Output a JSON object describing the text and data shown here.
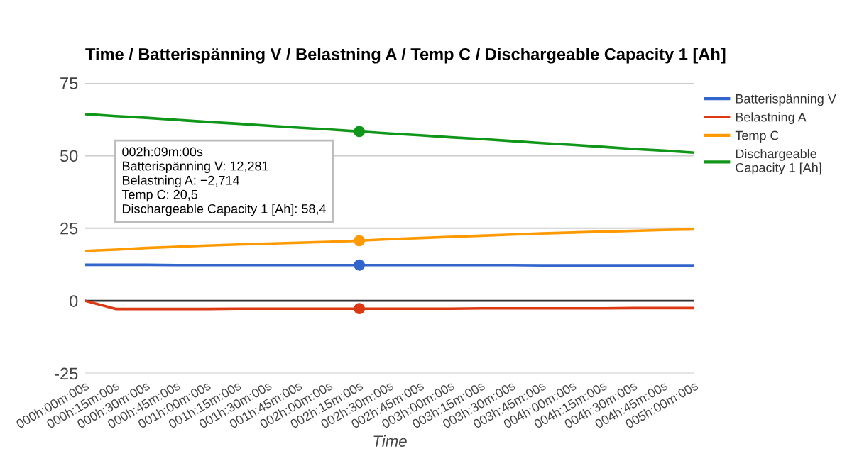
{
  "chart_data": {
    "type": "line",
    "title": "Time / Batterispänning V / Belastning A / Temp C / Dischargeable Capacity 1 [Ah]",
    "xlabel": "Time",
    "categories": [
      "000h:00m:00s",
      "000h:15m:00s",
      "000h:30m:00s",
      "000h:45m:00s",
      "001h:00m:00s",
      "001h:15m:00s",
      "001h:30m:00s",
      "001h:45m:00s",
      "002h:00m:00s",
      "002h:15m:00s",
      "002h:30m:00s",
      "002h:45m:00s",
      "003h:00m:00s",
      "003h:15m:00s",
      "003h:30m:00s",
      "003h:45m:00s",
      "004h:00m:00s",
      "004h:15m:00s",
      "004h:30m:00s",
      "004h:45m:00s",
      "005h:00m:00s"
    ],
    "ylim": [
      -25,
      75
    ],
    "yticks": [
      -25,
      0,
      25,
      50,
      75
    ],
    "grid": "y",
    "legend": "right",
    "marker": "none",
    "line_style": "solid",
    "ref_lines": [
      {
        "axis": "y",
        "value": 0,
        "color": "#333333"
      }
    ],
    "series": [
      {
        "name": "Batterispänning V",
        "color": "#3366cc",
        "values": [
          12.4,
          12.4,
          12.4,
          12.3,
          12.3,
          12.3,
          12.3,
          12.3,
          12.3,
          12.3,
          12.3,
          12.3,
          12.3,
          12.3,
          12.3,
          12.2,
          12.2,
          12.2,
          12.2,
          12.2,
          12.2
        ]
      },
      {
        "name": "Belastning A",
        "color": "#dc3912",
        "values": [
          0,
          -2.8,
          -2.8,
          -2.8,
          -2.8,
          -2.7,
          -2.7,
          -2.7,
          -2.7,
          -2.7,
          -2.7,
          -2.7,
          -2.7,
          -2.6,
          -2.6,
          -2.6,
          -2.6,
          -2.6,
          -2.5,
          -2.5,
          -2.5
        ]
      },
      {
        "name": "Temp C",
        "color": "#ff9900",
        "values": [
          17.2,
          17.6,
          18.2,
          18.6,
          19,
          19.4,
          19.7,
          20,
          20.3,
          20.7,
          21.2,
          21.6,
          22,
          22.4,
          22.8,
          23.2,
          23.5,
          23.8,
          24.1,
          24.4,
          24.6
        ]
      },
      {
        "name": "Dischargeable Capacity 1 [Ah]",
        "color": "#109618",
        "values": [
          64.3,
          63.6,
          63.0,
          62.3,
          61.6,
          61.0,
          60.3,
          59.6,
          59.0,
          58.3,
          57.6,
          57.0,
          56.3,
          55.7,
          55.0,
          54.3,
          53.7,
          53.0,
          52.3,
          51.7,
          51.0
        ]
      },
      {
        "type": "scatter",
        "marker": "circle",
        "color": "#3366cc",
        "values": [
          null,
          null,
          null,
          null,
          null,
          null,
          null,
          null,
          null,
          12.3,
          null,
          null,
          null,
          null,
          null,
          null,
          null,
          null,
          null,
          null,
          null
        ]
      },
      {
        "type": "scatter",
        "marker": "circle",
        "color": "#dc3912",
        "values": [
          null,
          null,
          null,
          null,
          null,
          null,
          null,
          null,
          null,
          -2.7,
          null,
          null,
          null,
          null,
          null,
          null,
          null,
          null,
          null,
          null,
          null
        ]
      },
      {
        "type": "scatter",
        "marker": "circle",
        "color": "#ff9900",
        "values": [
          null,
          null,
          null,
          null,
          null,
          null,
          null,
          null,
          null,
          20.7,
          null,
          null,
          null,
          null,
          null,
          null,
          null,
          null,
          null,
          null,
          null
        ]
      },
      {
        "type": "scatter",
        "marker": "circle",
        "color": "#109618",
        "values": [
          null,
          null,
          null,
          null,
          null,
          null,
          null,
          null,
          null,
          58.3,
          null,
          null,
          null,
          null,
          null,
          null,
          null,
          null,
          null,
          null,
          null
        ]
      }
    ],
    "annotations": [
      "002h:09m:00s\nBatterispänning V: 12,281\nBelastning A: −2,714\nTemp C: 20,5\nDischargeable Capacity 1 [Ah]: 58,4"
    ]
  }
}
